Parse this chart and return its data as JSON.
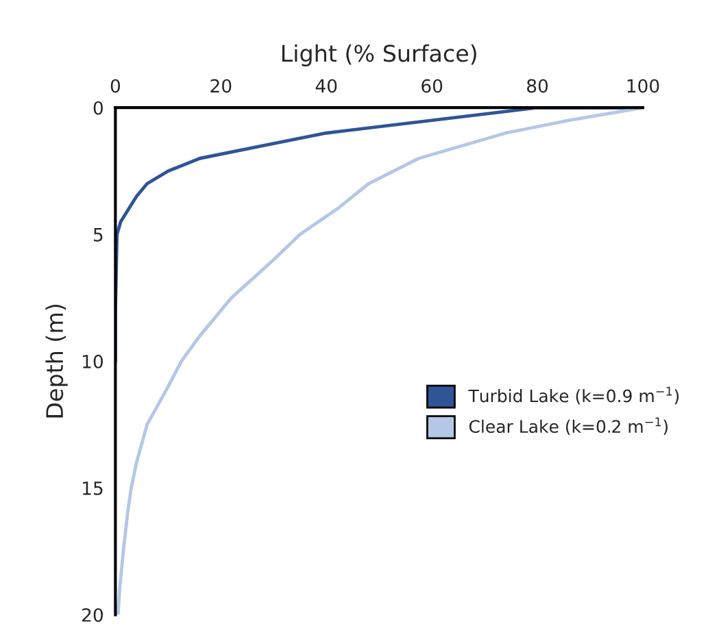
{
  "chart_data": {
    "type": "line",
    "xlabel": "Light (% Surface)",
    "ylabel": "Depth (m)",
    "xlim": [
      0,
      100
    ],
    "xticks": [
      0,
      20,
      40,
      60,
      80,
      100
    ],
    "ylim": [
      20,
      0
    ],
    "yticks": [
      0,
      5,
      10,
      15,
      20
    ],
    "grid": false,
    "legend": "right",
    "marker": "none",
    "line_style": "solid",
    "series": [
      {
        "name": "Turbid Lake (k=0.9 m$^{−1}$)",
        "color": "#2f5597",
        "x": [
          100,
          80,
          40,
          28,
          16,
          10,
          6,
          4,
          2.5,
          1,
          0.3,
          0.2,
          0.1,
          0,
          0,
          0
        ],
        "values": [
          0,
          0,
          1,
          1.5,
          2,
          2.5,
          3,
          3.5,
          4,
          4.5,
          5,
          6,
          7,
          8,
          9,
          10
        ]
      },
      {
        "name": "Clear Lake (k=0.2 m$^{−1}$)",
        "color": "#b4c7e7",
        "x": [
          100,
          86,
          74,
          57.5,
          48,
          42,
          35,
          30,
          22,
          16,
          12.5,
          10,
          6,
          4,
          3,
          2.3,
          1.5,
          0.8,
          0.5
        ],
        "values": [
          0,
          0.5,
          1,
          2,
          3,
          4,
          5,
          6,
          7.5,
          9,
          10,
          11,
          12.5,
          14,
          15,
          16,
          17.5,
          19,
          20
        ]
      }
    ]
  }
}
